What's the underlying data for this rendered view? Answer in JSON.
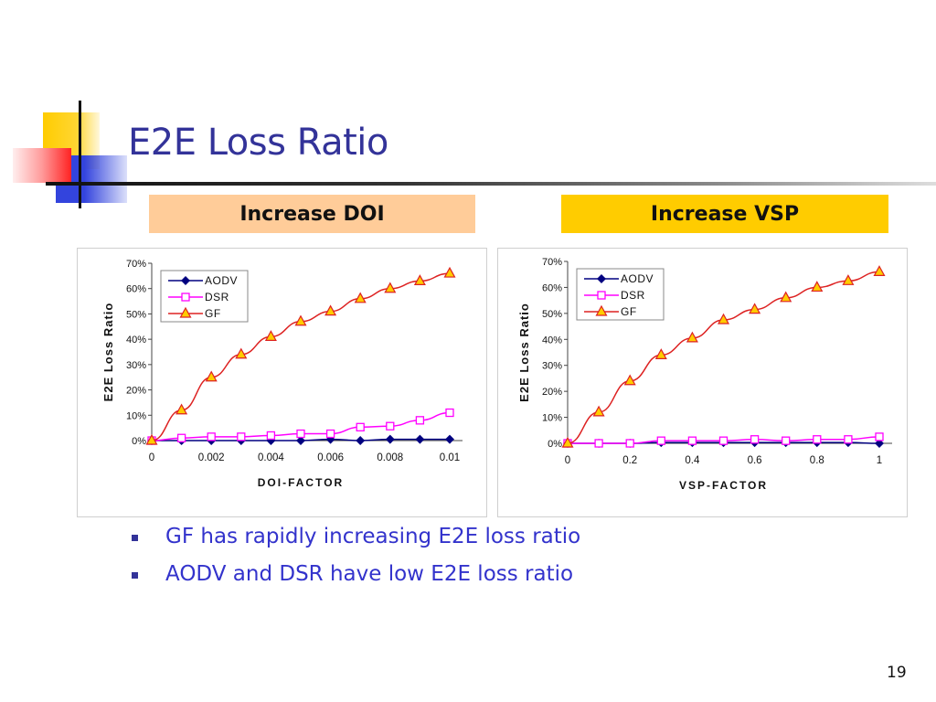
{
  "slide": {
    "title": "E2E Loss Ratio",
    "page_number": "19",
    "headers": [
      "Increase DOI",
      "Increase VSP"
    ],
    "header_colors": [
      "#ffcc99",
      "#ffcc00"
    ],
    "bullets": [
      "GF has rapidly increasing E2E loss ratio",
      "AODV and DSR have low E2E loss ratio"
    ],
    "title_color": "#333399",
    "bullet_color": "#3333cc"
  },
  "chart_data": [
    {
      "type": "line",
      "title": "",
      "xlabel": "DOI-FACTOR",
      "ylabel": "E2E Loss Ratio",
      "x": [
        0,
        0.001,
        0.002,
        0.003,
        0.004,
        0.005,
        0.006,
        0.007,
        0.008,
        0.009,
        0.01
      ],
      "xticks": [
        "0",
        "0.002",
        "0.004",
        "0.006",
        "0.008",
        "0.01"
      ],
      "xtick_values": [
        0,
        0.002,
        0.004,
        0.006,
        0.008,
        0.01
      ],
      "xlim": [
        0,
        0.01
      ],
      "yticks": [
        "0%",
        "10%",
        "20%",
        "30%",
        "40%",
        "50%",
        "60%",
        "70%"
      ],
      "ylim": [
        0,
        70
      ],
      "grid": false,
      "legend": "top-left",
      "series": [
        {
          "name": "AODV",
          "color": "#000080",
          "marker": "diamond",
          "values": [
            0,
            0,
            0,
            0,
            0,
            0,
            0.5,
            0,
            0.5,
            0.5,
            0.5
          ]
        },
        {
          "name": "DSR",
          "color": "#ff00ff",
          "marker": "square",
          "values": [
            0,
            1,
            1.5,
            1.5,
            2,
            2.7,
            2.7,
            5.3,
            5.7,
            8,
            11
          ]
        },
        {
          "name": "GF",
          "color": "#dd2222",
          "marker": "triangle",
          "values": [
            0,
            12,
            25,
            34,
            41,
            47,
            51,
            56,
            60,
            63,
            66
          ]
        }
      ]
    },
    {
      "type": "line",
      "title": "",
      "xlabel": "VSP-FACTOR",
      "ylabel": "E2E Loss Ratio",
      "x": [
        0,
        0.1,
        0.2,
        0.3,
        0.4,
        0.5,
        0.6,
        0.7,
        0.8,
        0.9,
        1
      ],
      "xticks": [
        "0",
        "0.2",
        "0.4",
        "0.6",
        "0.8",
        "1"
      ],
      "xtick_values": [
        0,
        0.2,
        0.4,
        0.6,
        0.8,
        1
      ],
      "xlim": [
        0,
        1
      ],
      "yticks": [
        "0%",
        "10%",
        "20%",
        "30%",
        "40%",
        "50%",
        "60%",
        "70%"
      ],
      "ylim": [
        0,
        70
      ],
      "grid": false,
      "legend": "top-left",
      "series": [
        {
          "name": "AODV",
          "color": "#000080",
          "marker": "diamond",
          "values": [
            0,
            0,
            0,
            0.3,
            0.3,
            0.3,
            0.3,
            0.3,
            0.3,
            0.3,
            0
          ]
        },
        {
          "name": "DSR",
          "color": "#ff00ff",
          "marker": "square",
          "values": [
            0,
            0,
            0,
            1,
            1,
            1,
            1.5,
            1,
            1.5,
            1.5,
            2.5
          ]
        },
        {
          "name": "GF",
          "color": "#dd2222",
          "marker": "triangle",
          "values": [
            0,
            12,
            24,
            34,
            40.5,
            47.5,
            51.5,
            56,
            60,
            62.5,
            66
          ]
        }
      ]
    }
  ]
}
